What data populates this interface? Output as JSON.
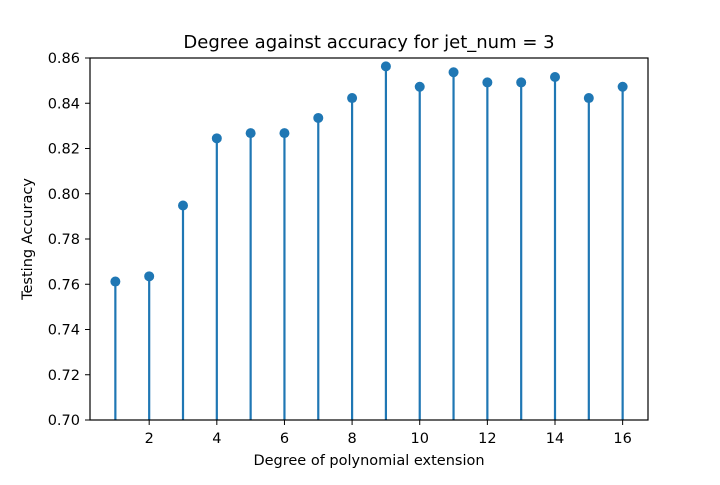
{
  "chart_data": {
    "type": "stem",
    "title": "Degree against accuracy for jet_num = 3",
    "xlabel": "Degree of polynomial extension",
    "ylabel": "Testing Accuracy",
    "x": [
      1,
      2,
      3,
      4,
      5,
      6,
      7,
      8,
      9,
      10,
      11,
      12,
      13,
      14,
      15,
      16
    ],
    "values": [
      0.7612,
      0.7635,
      0.7948,
      0.8245,
      0.8268,
      0.8268,
      0.8335,
      0.8423,
      0.8563,
      0.8473,
      0.8537,
      0.8492,
      0.8492,
      0.8516,
      0.8423,
      0.8473
    ],
    "xlim": [
      0.25,
      16.75
    ],
    "ylim": [
      0.7,
      0.86
    ],
    "xticks": [
      2,
      4,
      6,
      8,
      10,
      12,
      14,
      16
    ],
    "yticks": [
      0.7,
      0.72,
      0.74,
      0.76,
      0.78,
      0.8,
      0.82,
      0.84,
      0.86
    ],
    "xtick_labels": [
      "2",
      "4",
      "6",
      "8",
      "10",
      "12",
      "14",
      "16"
    ],
    "ytick_labels": [
      "0.70",
      "0.72",
      "0.74",
      "0.76",
      "0.78",
      "0.80",
      "0.82",
      "0.84",
      "0.86"
    ],
    "grid": false,
    "legend": "none",
    "color": "#1f77b4"
  }
}
